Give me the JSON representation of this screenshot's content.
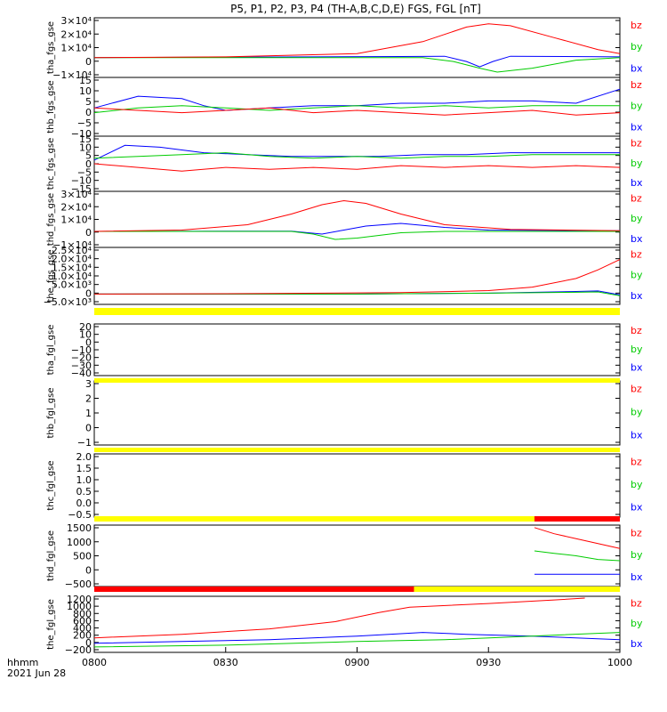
{
  "title": "P5, P1, P2, P3, P4 (TH-A,B,C,D,E) FGS, FGL [nT]",
  "colors": {
    "bx": "#0000ff",
    "by": "#00cc00",
    "bz": "#ff0000",
    "bar_yellow": "#ffff00",
    "bar_red": "#ff0000",
    "axis": "#000000"
  },
  "footer": {
    "axis_unit": "hhmm",
    "date": "2021 Jun 28"
  },
  "chart_data": {
    "type": "line",
    "x_range": [
      "08:00",
      "10:00"
    ],
    "x_ticks": [
      "0800",
      "0830",
      "0900",
      "0930",
      "1000"
    ],
    "legend_entries": [
      "bz",
      "by",
      "bx"
    ],
    "panels": [
      {
        "ylabel": "tha_fgs_gse",
        "ylim": [
          -15000,
          30000
        ],
        "yticks": [
          "3×10⁴",
          "2×10⁴",
          "1×10⁴",
          "0",
          "−1×10⁴"
        ],
        "series": {
          "bz": [
            [
              0,
              0
            ],
            [
              30,
              500
            ],
            [
              60,
              3000
            ],
            [
              75,
              12000
            ],
            [
              85,
              23000
            ],
            [
              90,
              25500
            ],
            [
              95,
              24000
            ],
            [
              105,
              15000
            ],
            [
              115,
              6000
            ],
            [
              120,
              3000
            ]
          ],
          "by": [
            [
              0,
              0
            ],
            [
              60,
              0
            ],
            [
              75,
              0
            ],
            [
              82,
              -3000
            ],
            [
              88,
              -8000
            ],
            [
              92,
              -11000
            ],
            [
              100,
              -8000
            ],
            [
              110,
              -2000
            ],
            [
              120,
              0
            ]
          ],
          "bx": [
            [
              0,
              0
            ],
            [
              50,
              500
            ],
            [
              70,
              800
            ],
            [
              80,
              1000
            ],
            [
              85,
              -3000
            ],
            [
              88,
              -7000
            ],
            [
              91,
              -3000
            ],
            [
              95,
              1000
            ],
            [
              120,
              500
            ]
          ]
        }
      },
      {
        "ylabel": "thb_fgs_gse",
        "ylim": [
          -10,
          15
        ],
        "yticks": [
          "15",
          "10",
          "5",
          "0",
          "−5",
          "−10"
        ],
        "series": {
          "bz": [
            [
              0,
              2
            ],
            [
              10,
              1
            ],
            [
              20,
              0
            ],
            [
              30,
              1
            ],
            [
              40,
              2
            ],
            [
              50,
              0
            ],
            [
              60,
              1
            ],
            [
              70,
              0
            ],
            [
              80,
              -1
            ],
            [
              90,
              0
            ],
            [
              100,
              1
            ],
            [
              110,
              -1
            ],
            [
              120,
              0
            ]
          ],
          "by": [
            [
              0,
              0
            ],
            [
              10,
              2
            ],
            [
              20,
              3
            ],
            [
              30,
              2
            ],
            [
              40,
              1
            ],
            [
              50,
              2
            ],
            [
              60,
              3
            ],
            [
              70,
              2
            ],
            [
              80,
              3
            ],
            [
              90,
              2
            ],
            [
              100,
              3
            ],
            [
              110,
              3
            ],
            [
              120,
              3
            ]
          ],
          "bx": [
            [
              0,
              2
            ],
            [
              10,
              7
            ],
            [
              20,
              6
            ],
            [
              25,
              3
            ],
            [
              30,
              1
            ],
            [
              40,
              2
            ],
            [
              50,
              3
            ],
            [
              60,
              3
            ],
            [
              70,
              4
            ],
            [
              80,
              4
            ],
            [
              90,
              5
            ],
            [
              100,
              5
            ],
            [
              110,
              4
            ],
            [
              120,
              10
            ]
          ]
        }
      },
      {
        "ylabel": "thc_fgs_gse",
        "ylim": [
          -15,
          15
        ],
        "yticks": [
          "15",
          "10",
          "5",
          "0",
          "−5",
          "−10",
          "−15"
        ],
        "series": {
          "bz": [
            [
              0,
              0
            ],
            [
              10,
              -2
            ],
            [
              20,
              -4
            ],
            [
              30,
              -2
            ],
            [
              40,
              -3
            ],
            [
              50,
              -2
            ],
            [
              60,
              -3
            ],
            [
              70,
              -1
            ],
            [
              80,
              -2
            ],
            [
              90,
              -1
            ],
            [
              100,
              -2
            ],
            [
              110,
              -1
            ],
            [
              120,
              -2
            ]
          ],
          "by": [
            [
              0,
              3
            ],
            [
              10,
              4
            ],
            [
              20,
              5
            ],
            [
              30,
              6
            ],
            [
              40,
              4
            ],
            [
              50,
              3
            ],
            [
              60,
              4
            ],
            [
              70,
              3
            ],
            [
              80,
              4
            ],
            [
              90,
              4
            ],
            [
              100,
              5
            ],
            [
              110,
              5
            ],
            [
              120,
              5
            ]
          ],
          "bx": [
            [
              0,
              2
            ],
            [
              7,
              10
            ],
            [
              15,
              9
            ],
            [
              25,
              6
            ],
            [
              35,
              5
            ],
            [
              45,
              4
            ],
            [
              55,
              4
            ],
            [
              65,
              4
            ],
            [
              75,
              5
            ],
            [
              85,
              5
            ],
            [
              95,
              6
            ],
            [
              105,
              6
            ],
            [
              120,
              6
            ]
          ]
        }
      },
      {
        "ylabel": "thd_fgs_gse",
        "ylim": [
          -12000,
          30000
        ],
        "yticks": [
          "3×10⁴",
          "2×10⁴",
          "1×10⁴",
          "0",
          "−1×10⁴"
        ],
        "series": {
          "bz": [
            [
              0,
              0
            ],
            [
              20,
              1000
            ],
            [
              35,
              5000
            ],
            [
              45,
              13000
            ],
            [
              52,
              20000
            ],
            [
              57,
              23000
            ],
            [
              62,
              21000
            ],
            [
              70,
              13000
            ],
            [
              80,
              5000
            ],
            [
              95,
              1500
            ],
            [
              120,
              500
            ]
          ],
          "by": [
            [
              0,
              0
            ],
            [
              45,
              0
            ],
            [
              50,
              -2000
            ],
            [
              55,
              -6000
            ],
            [
              60,
              -5000
            ],
            [
              70,
              -1000
            ],
            [
              80,
              0
            ],
            [
              120,
              0
            ]
          ],
          "bx": [
            [
              0,
              0
            ],
            [
              45,
              200
            ],
            [
              52,
              -2000
            ],
            [
              57,
              1000
            ],
            [
              62,
              4000
            ],
            [
              70,
              6000
            ],
            [
              80,
              3000
            ],
            [
              90,
              1000
            ],
            [
              120,
              500
            ]
          ]
        }
      },
      {
        "ylabel": "the_fgs_gse",
        "ylim": [
          -6000,
          27000
        ],
        "yticks": [
          "2.5×10⁴",
          "2.0×10⁴",
          "1.5×10⁴",
          "1.0×10⁴",
          "5.0×10³",
          "0",
          "−5.0×10³"
        ],
        "series": {
          "bz": [
            [
              0,
              0
            ],
            [
              40,
              300
            ],
            [
              70,
              800
            ],
            [
              90,
              2000
            ],
            [
              100,
              4000
            ],
            [
              110,
              9000
            ],
            [
              115,
              14000
            ],
            [
              120,
              20000
            ]
          ],
          "by": [
            [
              0,
              0
            ],
            [
              60,
              0
            ],
            [
              90,
              500
            ],
            [
              110,
              1000
            ],
            [
              115,
              1200
            ],
            [
              120,
              -1000
            ]
          ],
          "bx": [
            [
              0,
              0
            ],
            [
              60,
              0
            ],
            [
              90,
              500
            ],
            [
              110,
              1500
            ],
            [
              115,
              1800
            ],
            [
              120,
              -500
            ]
          ]
        }
      },
      {
        "ylabel": "tha_fgl_gse",
        "ylim": [
          -45,
          25
        ],
        "yticks": [
          "20",
          "10",
          "0",
          "−10",
          "−20",
          "−30",
          "−40"
        ],
        "series": {
          "bz": [],
          "by": [],
          "bx": []
        }
      },
      {
        "ylabel": "thb_fgl_gse",
        "ylim": [
          -1.5,
          3.5
        ],
        "yticks": [
          "3",
          "2",
          "1",
          "0",
          "−1"
        ],
        "series": {
          "bz": [],
          "by": [],
          "bx": []
        }
      },
      {
        "ylabel": "thc_fgl_gse",
        "ylim": [
          -0.8,
          2.2
        ],
        "yticks": [
          "2.0",
          "1.5",
          "1.0",
          "0.5",
          "0.0",
          "−0.5"
        ],
        "series": {
          "bz": [],
          "by": [],
          "bx": []
        }
      },
      {
        "ylabel": "thd_fgl_gse",
        "ylim": [
          -800,
          1700
        ],
        "yticks": [
          "1500",
          "1000",
          "500",
          "0",
          "−500"
        ],
        "series": {
          "bz": [
            [
              100.5,
              1600
            ],
            [
              105,
              1350
            ],
            [
              110,
              1150
            ],
            [
              115,
              950
            ],
            [
              120,
              750
            ]
          ],
          "by": [
            [
              100.5,
              650
            ],
            [
              105,
              550
            ],
            [
              110,
              450
            ],
            [
              115,
              300
            ],
            [
              120,
              250
            ]
          ],
          "bx": [
            [
              100.5,
              -300
            ],
            [
              110,
              -300
            ],
            [
              120,
              -300
            ]
          ]
        }
      },
      {
        "ylabel": "the_fgl_gse",
        "ylim": [
          -250,
          1300
        ],
        "yticks": [
          "1200",
          "1000",
          "800",
          "600",
          "400",
          "200",
          "0",
          "−200"
        ],
        "series": {
          "bz": [
            [
              0,
              150
            ],
            [
              20,
              250
            ],
            [
              40,
              400
            ],
            [
              55,
              600
            ],
            [
              65,
              850
            ],
            [
              72,
              1000
            ],
            [
              90,
              1100
            ],
            [
              105,
              1200
            ],
            [
              112,
              1250
            ]
          ],
          "by": [
            [
              0,
              -100
            ],
            [
              30,
              -50
            ],
            [
              60,
              50
            ],
            [
              80,
              100
            ],
            [
              100,
              200
            ],
            [
              120,
              300
            ]
          ],
          "bx": [
            [
              0,
              0
            ],
            [
              20,
              50
            ],
            [
              40,
              100
            ],
            [
              60,
              200
            ],
            [
              75,
              300
            ],
            [
              85,
              250
            ],
            [
              100,
              200
            ],
            [
              120,
              100
            ]
          ]
        }
      }
    ],
    "status_bars": [
      [
        [
          "yellow",
          0,
          120
        ]
      ],
      [
        [
          "yellow",
          0,
          120
        ]
      ],
      [
        [
          "yellow",
          0,
          120
        ]
      ],
      [
        [
          "yellow",
          0,
          100.5
        ],
        [
          "red",
          100.5,
          120
        ]
      ],
      [
        [
          "red",
          0,
          73
        ],
        [
          "yellow",
          73,
          120
        ]
      ]
    ]
  }
}
